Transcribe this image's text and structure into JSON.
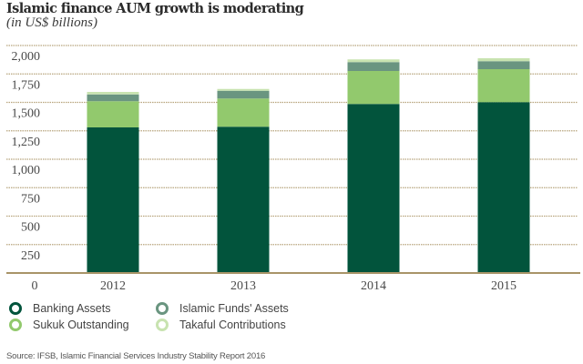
{
  "chart_data": {
    "type": "bar",
    "stacked": true,
    "title": "Islamic finance AUM growth is moderating",
    "subtitle": "(in US$ billions)",
    "xlabel": "",
    "ylabel": "",
    "categories": [
      "2012",
      "2013",
      "2014",
      "2015"
    ],
    "series": [
      {
        "name": "Banking Assets",
        "color": "#02543c",
        "values": [
          1280,
          1286,
          1486,
          1502
        ]
      },
      {
        "name": "Sukuk Outstanding",
        "color": "#92c96d",
        "values": [
          230,
          248,
          290,
          290
        ]
      },
      {
        "name": "Islamic Funds' Assets",
        "color": "#6a9580",
        "values": [
          60,
          68,
          78,
          70
        ]
      },
      {
        "name": "Takaful Contributions",
        "color": "#c8e3b0",
        "values": [
          22,
          16,
          24,
          26
        ]
      }
    ],
    "ylim": [
      0,
      2000
    ],
    "yticks": [
      250,
      500,
      750,
      1000,
      1250,
      1500,
      1750,
      2000
    ],
    "ytick_labels": [
      "250",
      "500",
      "750",
      "1,000",
      "1,250",
      "1,500",
      "1,750",
      "2,000"
    ],
    "zero_label": "0",
    "grid": true,
    "legend_position": "bottom-left",
    "source": "Source: IFSB, Islamic Financial Services Industry Stability Report 2016"
  },
  "colors": {
    "grid": "#b8a57e",
    "baseline": "#a89468"
  }
}
